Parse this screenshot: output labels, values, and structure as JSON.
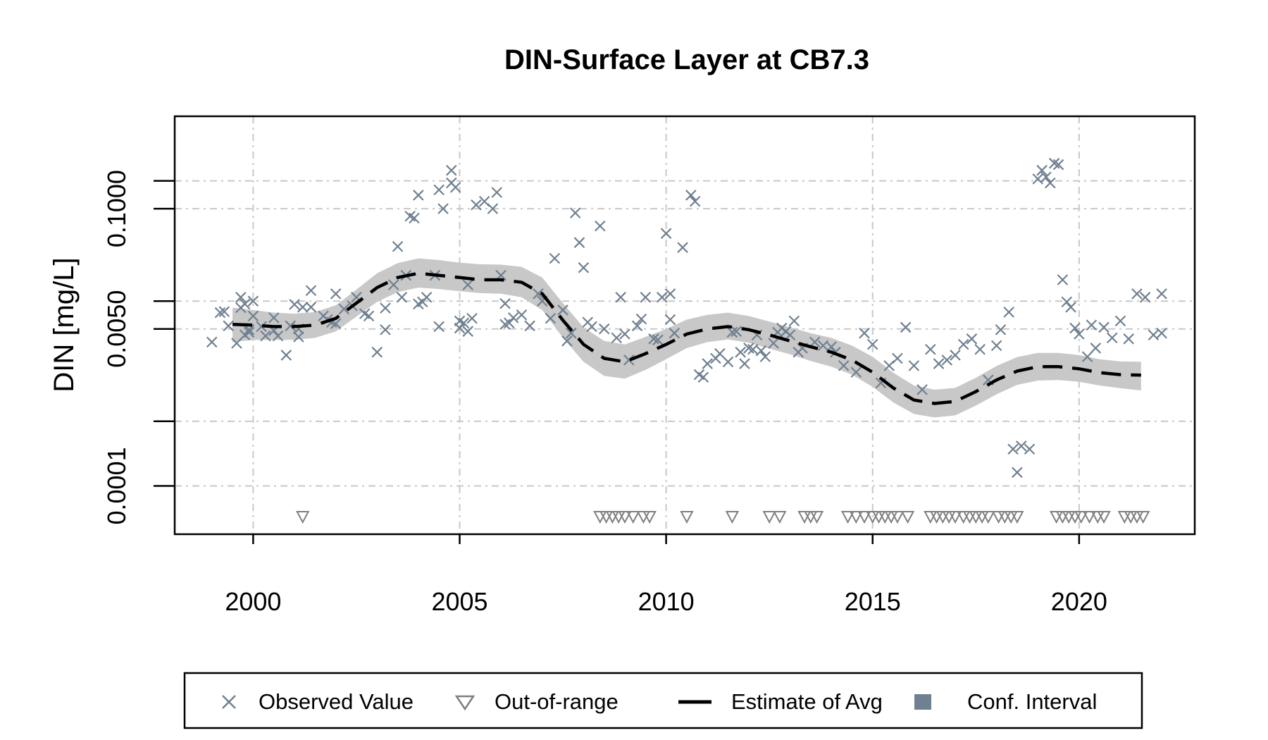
{
  "chart_data": {
    "type": "scatter",
    "title": "DIN-Surface Layer at CB7.3",
    "xlabel": "",
    "ylabel": "DIN [mg/L]",
    "x_scale": "time (years)",
    "y_scale": "log",
    "xlim": [
      1998.1,
      2022.8
    ],
    "ylim": [
      3e-05,
      1.0
    ],
    "grid": true,
    "x_ticks": [
      2000,
      2005,
      2010,
      2015,
      2020
    ],
    "x_tick_labels": [
      "2000",
      "2005",
      "2010",
      "2015",
      "2020"
    ],
    "y_ticks": [
      0.0001,
      0.0005,
      0.005,
      0.01,
      0.1,
      0.2
    ],
    "y_tick_labels": [
      "0.0001",
      "",
      "0.0050",
      "",
      "0.1000",
      ""
    ],
    "colors": {
      "observed": "#708090",
      "out_of_range": "#7f7f7f",
      "estimate": "#000000",
      "conf_interval": "#c8c8c8",
      "legend_ci_swatch": "#708090",
      "grid": "#c8c8c8"
    },
    "legend": {
      "position": "bottom",
      "entries": [
        "Observed Value",
        "Out-of-range",
        "Estimate of Avg",
        "Conf. Interval"
      ]
    },
    "series": [
      {
        "name": "Observed Value",
        "marker": "x",
        "points": [
          [
            1999.0,
            0.0036
          ],
          [
            1999.2,
            0.0075
          ],
          [
            1999.3,
            0.0077
          ],
          [
            1999.4,
            0.0054
          ],
          [
            1999.6,
            0.0035
          ],
          [
            1999.7,
            0.0085
          ],
          [
            1999.7,
            0.011
          ],
          [
            1999.8,
            0.0093
          ],
          [
            1999.8,
            0.0043
          ],
          [
            1999.9,
            0.0046
          ],
          [
            1999.9,
            0.0049
          ],
          [
            2000.0,
            0.0069
          ],
          [
            2000.0,
            0.01
          ],
          [
            2000.2,
            0.0053
          ],
          [
            2000.3,
            0.0042
          ],
          [
            2000.5,
            0.0066
          ],
          [
            2000.5,
            0.0048
          ],
          [
            2000.6,
            0.0042
          ],
          [
            2000.8,
            0.0026
          ],
          [
            2000.9,
            0.0054
          ],
          [
            2001.0,
            0.0092
          ],
          [
            2001.1,
            0.005
          ],
          [
            2001.1,
            0.0041
          ],
          [
            2001.2,
            0.0086
          ],
          [
            2001.4,
            0.0086
          ],
          [
            2001.4,
            0.013
          ],
          [
            2001.7,
            0.0069
          ],
          [
            2001.8,
            0.0063
          ],
          [
            2001.9,
            0.0059
          ],
          [
            2002.0,
            0.012
          ],
          [
            2002.0,
            0.0057
          ],
          [
            2002.2,
            0.0082
          ],
          [
            2002.4,
            0.0089
          ],
          [
            2002.5,
            0.011
          ],
          [
            2002.7,
            0.0073
          ],
          [
            2002.8,
            0.0069
          ],
          [
            2003.0,
            0.0028
          ],
          [
            2003.2,
            0.0084
          ],
          [
            2003.2,
            0.0049
          ],
          [
            2003.4,
            0.015
          ],
          [
            2003.5,
            0.039
          ],
          [
            2003.6,
            0.011
          ],
          [
            2003.7,
            0.019
          ],
          [
            2003.8,
            0.083
          ],
          [
            2003.9,
            0.079
          ],
          [
            2004.0,
            0.14
          ],
          [
            2004.0,
            0.0093
          ],
          [
            2004.1,
            0.0098
          ],
          [
            2004.2,
            0.011
          ],
          [
            2004.4,
            0.019
          ],
          [
            2004.5,
            0.16
          ],
          [
            2004.5,
            0.0053
          ],
          [
            2004.6,
            0.1
          ],
          [
            2004.8,
            0.26
          ],
          [
            2004.8,
            0.19
          ],
          [
            2004.9,
            0.17
          ],
          [
            2005.0,
            0.0061
          ],
          [
            2005.0,
            0.0051
          ],
          [
            2005.1,
            0.0058
          ],
          [
            2005.2,
            0.015
          ],
          [
            2005.2,
            0.0047
          ],
          [
            2005.3,
            0.0065
          ],
          [
            2005.4,
            0.11
          ],
          [
            2005.6,
            0.12
          ],
          [
            2005.8,
            0.1
          ],
          [
            2005.9,
            0.15
          ],
          [
            2006.0,
            0.019
          ],
          [
            2006.1,
            0.0094
          ],
          [
            2006.1,
            0.0056
          ],
          [
            2006.2,
            0.0058
          ],
          [
            2006.3,
            0.0066
          ],
          [
            2006.5,
            0.0071
          ],
          [
            2006.7,
            0.0054
          ],
          [
            2006.9,
            0.012
          ],
          [
            2007.0,
            0.01
          ],
          [
            2007.2,
            0.0065
          ],
          [
            2007.3,
            0.029
          ],
          [
            2007.5,
            0.008
          ],
          [
            2007.6,
            0.0037
          ],
          [
            2007.7,
            0.0045
          ],
          [
            2007.8,
            0.09
          ],
          [
            2007.9,
            0.043
          ],
          [
            2008.0,
            0.023
          ],
          [
            2008.1,
            0.0059
          ],
          [
            2008.2,
            0.0053
          ],
          [
            2008.4,
            0.065
          ],
          [
            2008.5,
            0.005
          ],
          [
            2008.8,
            0.004
          ],
          [
            2008.9,
            0.011
          ],
          [
            2009.0,
            0.0044
          ],
          [
            2009.1,
            0.0023
          ],
          [
            2009.3,
            0.0054
          ],
          [
            2009.4,
            0.0064
          ],
          [
            2009.5,
            0.011
          ],
          [
            2009.7,
            0.0039
          ],
          [
            2009.8,
            0.0038
          ],
          [
            2009.9,
            0.011
          ],
          [
            2010.0,
            0.054
          ],
          [
            2010.1,
            0.0063
          ],
          [
            2010.1,
            0.012
          ],
          [
            2010.2,
            0.0045
          ],
          [
            2010.4,
            0.038
          ],
          [
            2010.6,
            0.14
          ],
          [
            2010.7,
            0.12
          ],
          [
            2010.8,
            0.0016
          ],
          [
            2010.9,
            0.0015
          ],
          [
            2011.0,
            0.0021
          ],
          [
            2011.2,
            0.0024
          ],
          [
            2011.3,
            0.0027
          ],
          [
            2011.5,
            0.0022
          ],
          [
            2011.6,
            0.0046
          ],
          [
            2011.7,
            0.0047
          ],
          [
            2011.8,
            0.0028
          ],
          [
            2011.9,
            0.0021
          ],
          [
            2012.0,
            0.0031
          ],
          [
            2012.1,
            0.003
          ],
          [
            2012.2,
            0.0043
          ],
          [
            2012.3,
            0.0029
          ],
          [
            2012.4,
            0.0025
          ],
          [
            2012.6,
            0.0035
          ],
          [
            2012.7,
            0.0046
          ],
          [
            2012.8,
            0.0051
          ],
          [
            2012.9,
            0.0047
          ],
          [
            2013.0,
            0.0043
          ],
          [
            2013.1,
            0.0061
          ],
          [
            2013.2,
            0.0028
          ],
          [
            2013.3,
            0.0031
          ],
          [
            2013.6,
            0.0036
          ],
          [
            2013.8,
            0.0033
          ],
          [
            2014.0,
            0.0032
          ],
          [
            2014.1,
            0.0028
          ],
          [
            2014.3,
            0.002
          ],
          [
            2014.6,
            0.0017
          ],
          [
            2014.8,
            0.0045
          ],
          [
            2015.0,
            0.0034
          ],
          [
            2015.2,
            0.0013
          ],
          [
            2015.4,
            0.002
          ],
          [
            2015.6,
            0.0024
          ],
          [
            2015.8,
            0.0052
          ],
          [
            2016.0,
            0.002
          ],
          [
            2016.2,
            0.0011
          ],
          [
            2016.4,
            0.003
          ],
          [
            2016.6,
            0.0021
          ],
          [
            2016.8,
            0.0023
          ],
          [
            2017.0,
            0.0026
          ],
          [
            2017.2,
            0.0034
          ],
          [
            2017.4,
            0.0039
          ],
          [
            2017.6,
            0.003
          ],
          [
            2017.8,
            0.0014
          ],
          [
            2018.0,
            0.0033
          ],
          [
            2018.1,
            0.0049
          ],
          [
            2018.3,
            0.0076
          ],
          [
            2018.4,
            0.00025
          ],
          [
            2018.5,
            0.00014
          ],
          [
            2018.6,
            0.00027
          ],
          [
            2018.8,
            0.00025
          ],
          [
            2019.0,
            0.21
          ],
          [
            2019.1,
            0.26
          ],
          [
            2019.2,
            0.22
          ],
          [
            2019.3,
            0.19
          ],
          [
            2019.4,
            0.31
          ],
          [
            2019.5,
            0.3
          ],
          [
            2019.6,
            0.017
          ],
          [
            2019.7,
            0.0098
          ],
          [
            2019.8,
            0.0086
          ],
          [
            2019.9,
            0.0051
          ],
          [
            2020.0,
            0.0044
          ],
          [
            2020.2,
            0.0025
          ],
          [
            2020.3,
            0.0055
          ],
          [
            2020.4,
            0.0031
          ],
          [
            2020.6,
            0.0052
          ],
          [
            2020.8,
            0.004
          ],
          [
            2021.0,
            0.0061
          ],
          [
            2021.2,
            0.0039
          ],
          [
            2021.4,
            0.012
          ],
          [
            2021.6,
            0.011
          ],
          [
            2021.8,
            0.0043
          ],
          [
            2022.0,
            0.0045
          ],
          [
            2022.0,
            0.012
          ]
        ]
      },
      {
        "name": "Out-of-range",
        "marker": "triangle-down",
        "x": [
          2001.2,
          2008.4,
          2008.55,
          2008.7,
          2008.85,
          2009.0,
          2009.2,
          2009.45,
          2009.6,
          2010.5,
          2011.6,
          2012.5,
          2012.75,
          2013.35,
          2013.5,
          2013.65,
          2014.4,
          2014.6,
          2014.8,
          2015.0,
          2015.15,
          2015.3,
          2015.45,
          2015.6,
          2015.85,
          2016.4,
          2016.55,
          2016.7,
          2016.85,
          2017.0,
          2017.2,
          2017.35,
          2017.5,
          2017.65,
          2017.8,
          2018.05,
          2018.2,
          2018.35,
          2018.5,
          2019.45,
          2019.6,
          2019.75,
          2019.9,
          2020.05,
          2020.25,
          2020.45,
          2020.6,
          2021.1,
          2021.25,
          2021.4,
          2021.55
        ],
        "y_value": "below detection"
      },
      {
        "name": "Estimate of Avg",
        "line": "dashed",
        "x": [
          1999.5,
          2000.0,
          2000.5,
          2001.0,
          2001.5,
          2002.0,
          2002.5,
          2003.0,
          2003.5,
          2004.0,
          2004.5,
          2005.0,
          2005.5,
          2006.0,
          2006.5,
          2007.0,
          2007.5,
          2008.0,
          2008.5,
          2009.0,
          2009.5,
          2010.0,
          2010.5,
          2011.0,
          2011.5,
          2012.0,
          2012.5,
          2013.0,
          2013.5,
          2014.0,
          2014.5,
          2015.0,
          2015.5,
          2016.0,
          2016.5,
          2017.0,
          2017.5,
          2018.0,
          2018.5,
          2019.0,
          2019.5,
          2020.0,
          2020.5,
          2021.0,
          2021.5
        ],
        "y": [
          0.0056,
          0.0055,
          0.0053,
          0.0053,
          0.0055,
          0.0065,
          0.0095,
          0.014,
          0.018,
          0.02,
          0.019,
          0.018,
          0.017,
          0.017,
          0.016,
          0.012,
          0.0062,
          0.0034,
          0.0024,
          0.0022,
          0.0027,
          0.0034,
          0.0044,
          0.005,
          0.0053,
          0.0049,
          0.0043,
          0.0037,
          0.0032,
          0.0028,
          0.0023,
          0.0017,
          0.00115,
          0.00085,
          0.00078,
          0.00082,
          0.00105,
          0.0014,
          0.00175,
          0.00195,
          0.00195,
          0.00185,
          0.00168,
          0.0016,
          0.00158
        ],
        "ci_lower": [
          0.0036,
          0.0038,
          0.0038,
          0.0038,
          0.004,
          0.0047,
          0.0068,
          0.0098,
          0.0125,
          0.014,
          0.0135,
          0.0128,
          0.0122,
          0.012,
          0.011,
          0.008,
          0.004,
          0.0022,
          0.00155,
          0.00145,
          0.0018,
          0.00235,
          0.0031,
          0.0036,
          0.00385,
          0.00355,
          0.00305,
          0.00265,
          0.00225,
          0.00195,
          0.0016,
          0.00118,
          0.0008,
          0.0006,
          0.00055,
          0.00058,
          0.00074,
          0.00098,
          0.00124,
          0.00138,
          0.0014,
          0.00134,
          0.00122,
          0.00114,
          0.00108
        ],
        "ci_upper": [
          0.0085,
          0.008,
          0.0075,
          0.0073,
          0.0076,
          0.009,
          0.0133,
          0.02,
          0.0258,
          0.029,
          0.0278,
          0.026,
          0.025,
          0.0248,
          0.0235,
          0.018,
          0.0095,
          0.0052,
          0.0037,
          0.0034,
          0.0041,
          0.005,
          0.0063,
          0.0071,
          0.0075,
          0.0069,
          0.006,
          0.0052,
          0.0045,
          0.004,
          0.0033,
          0.0025,
          0.00168,
          0.00122,
          0.0011,
          0.00115,
          0.00148,
          0.00198,
          0.00248,
          0.00275,
          0.00275,
          0.0026,
          0.00235,
          0.00222,
          0.0022
        ]
      }
    ]
  }
}
